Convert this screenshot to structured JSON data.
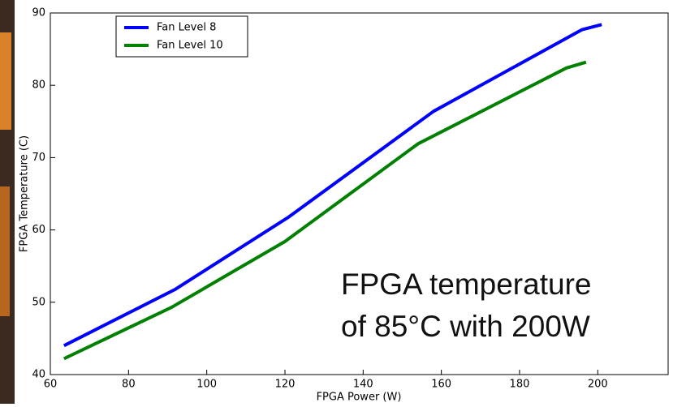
{
  "chart_data": {
    "type": "line",
    "x_label": "FPGA Power (W)",
    "y_label": "FPGA Temperature (C)",
    "annotation": [
      "FPGA temperature",
      "of 85°C with 200W"
    ],
    "series": [
      {
        "name": "Fan Level 8",
        "color": "#0000ff",
        "x": [
          63.5,
          92,
          121,
          158,
          196,
          201
        ],
        "values": [
          44,
          51.8,
          61.8,
          76.4,
          87.7,
          88.4
        ]
      },
      {
        "name": "Fan Level 10",
        "color": "#008000",
        "x": [
          63.5,
          91,
          120,
          154,
          192,
          197
        ],
        "values": [
          42.2,
          49.3,
          58.4,
          71.9,
          82.4,
          83.2
        ]
      }
    ],
    "xlim": [
      60,
      218
    ],
    "xticks": [
      60,
      80,
      100,
      120,
      140,
      160,
      180,
      200
    ],
    "ylim": [
      40,
      90
    ],
    "yticks": [
      40,
      50,
      60,
      70,
      80,
      90
    ],
    "legend": "upper left"
  }
}
